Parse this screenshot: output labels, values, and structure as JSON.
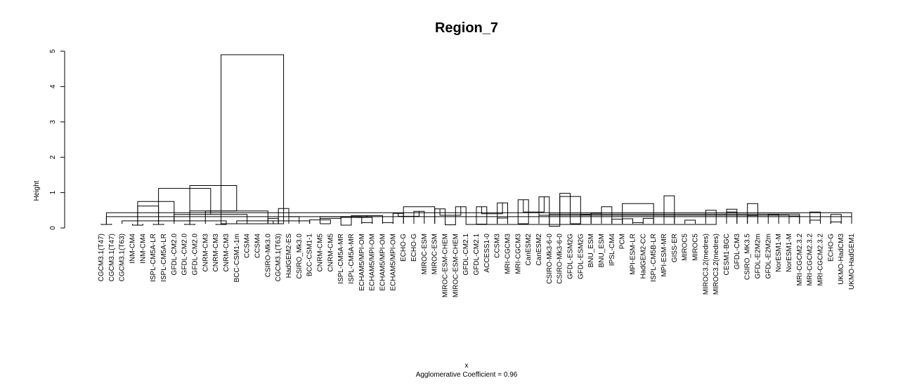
{
  "chart_data": {
    "type": "dendrogram",
    "title": "Region_7",
    "ylabel": "Height",
    "xlabel": "x",
    "subtitle": "Agglomerative Coefficient =  0.96",
    "ylim": [
      0,
      5
    ],
    "yticks": [
      0,
      1,
      2,
      3,
      4,
      5
    ],
    "leaves": [
      "CGCM3.1(T47)",
      "CGCM3.1(T47)",
      "CGCM3.1(T63)",
      "INM-CM4",
      "INM-CM4",
      "ISPL-CM5A-LR",
      "ISPL-CM5A-LR",
      "GFDL-CM2.0",
      "GFDL-CM2.0",
      "GFDL-CM2.0",
      "CNRM-CM3",
      "CNRM-CM3",
      "CNRM-CM3",
      "BCC-CSM1-1m",
      "CCSM4",
      "CCSM4",
      "CSIRO-Mk3.0",
      "CGCM3.1(T63)",
      "HadGEM2-ES",
      "CSIRO_Mk3.0",
      "BCC-CSM1-1",
      "CNRM-CM5",
      "CNRM-CM5",
      "ISPL-CM5A-MR",
      "ISPL-CM5A-MR",
      "ECHAM5/MPI-OM",
      "ECHAM5/MPI-OM",
      "ECHAM5/MPI-OM",
      "ECHAM5/MPI-OM",
      "ECHO-G",
      "ECHO-G",
      "MIROC-ESM",
      "MIROC-ESM",
      "MIROC-ESM-CHEM",
      "MIROC-ESM-CHEM",
      "GFDL-CM2.1",
      "GFDL-CM2.1",
      "ACCESS1-0",
      "CCSM3",
      "MRI-CGCM3",
      "MRI-CGCM3",
      "CanESM2",
      "CanESM2",
      "CSIRO-Mk3-6-0",
      "CSIRO-Mk3-6-0",
      "GFDL-ESM2G",
      "GFDL-ESM2G",
      "BNU_ESM",
      "BNU_ESM",
      "IPSL-CM4",
      "PCM",
      "MPI-ESM-LR",
      "HadGEM2-CC",
      "ISPL-CM5B-LR",
      "MPI-ESM-MR",
      "GISS-ER",
      "MIROC5",
      "MIROC5",
      "MIROC3.2(medres)",
      "MIROC3.2(medres)",
      "CESM1-BGC",
      "GFDL-CM3",
      "CSIRO_MK3.5",
      "GFDL-E2M2m",
      "GFDL-E2M2m",
      "NorESM1-M",
      "NorESM1-M",
      "MRI-CGCM2.3.2",
      "MRI-CGCM2.3.2",
      "MRI-CGCM2.3.2",
      "ECHO-G",
      "UKMO-HadCM3",
      "UKMO-HadGEM1"
    ],
    "merges": [
      [
        0,
        1,
        0.1
      ],
      [
        12,
        2,
        0.2
      ],
      [
        3,
        4,
        0.08
      ],
      [
        5,
        6,
        0.1
      ],
      [
        14,
        7,
        0.38
      ],
      [
        8,
        9,
        0.1
      ],
      [
        16,
        10,
        0.48
      ],
      [
        17,
        18,
        0.55
      ],
      [
        11,
        12,
        0.1
      ],
      [
        20,
        13,
        0.2
      ],
      [
        14,
        15,
        0.12
      ],
      [
        16,
        17,
        0.27
      ],
      [
        18,
        19,
        0.32
      ],
      [
        20,
        22,
        0.23
      ],
      [
        25,
        21,
        0.32
      ],
      [
        26,
        23,
        0.3
      ],
      [
        24,
        27,
        0.35
      ],
      [
        28,
        29,
        0.41
      ],
      [
        30,
        31,
        0.47
      ],
      [
        32,
        33,
        0.54
      ],
      [
        34,
        35,
        0.6
      ],
      [
        36,
        37,
        0.6
      ],
      [
        38,
        39,
        0.71
      ],
      [
        40,
        41,
        0.8
      ],
      [
        42,
        43,
        0.88
      ],
      [
        44,
        45,
        0.98
      ],
      [
        21,
        22,
        0.12
      ],
      [
        23,
        24,
        0.08
      ],
      [
        47,
        46,
        0.38
      ],
      [
        48,
        49,
        0.6
      ],
      [
        25,
        26,
        0.15
      ],
      [
        27,
        28,
        0.15
      ],
      [
        52,
        51,
        0.15
      ],
      [
        29,
        32,
        0.6
      ],
      [
        50,
        53,
        0.69
      ],
      [
        54,
        55,
        0.91
      ],
      [
        33,
        34,
        0.09
      ],
      [
        59,
        35,
        0.1
      ],
      [
        60,
        61,
        0.53
      ],
      [
        62,
        63,
        0.69
      ],
      [
        44,
        46,
        0.89
      ],
      [
        36,
        37,
        0.11
      ],
      [
        38,
        39,
        0.28
      ],
      [
        42,
        66,
        0.36
      ],
      [
        67,
        43,
        0.39
      ],
      [
        68,
        69,
        0.45
      ],
      [
        40,
        41,
        0.12
      ],
      [
        70,
        71,
        0.38
      ],
      [
        72,
        73,
        0.43
      ],
      [
        43,
        44,
        0.05
      ],
      [
        76,
        75,
        0.62
      ],
      [
        45,
        46,
        0.12
      ],
      [
        47,
        48,
        0.42
      ],
      [
        78,
        79,
        0.48
      ],
      [
        80,
        81,
        0.12
      ],
      [
        82,
        83,
        0.12
      ],
      [
        49,
        50,
        0.25
      ],
      [
        50,
        51,
        0.26
      ],
      [
        86,
        87,
        0.27
      ],
      [
        88,
        89,
        0.3
      ],
      [
        90,
        91,
        0.33
      ],
      [
        92,
        93,
        0.36
      ],
      [
        94,
        95,
        0.4
      ],
      [
        96,
        97,
        0.45
      ],
      [
        52,
        53,
        0.27
      ],
      [
        54,
        55,
        0.32
      ],
      [
        56,
        57,
        0.22
      ],
      [
        58,
        59,
        0.5
      ],
      [
        60,
        61,
        0.45
      ],
      [
        62,
        63,
        0.35
      ],
      [
        64,
        65,
        0.38
      ],
      [
        66,
        67,
        0.34
      ],
      [
        68,
        69,
        0.22
      ],
      [
        70,
        71,
        0.17
      ],
      [
        72,
        73,
        0.32
      ],
      [
        74,
        75,
        0.75
      ],
      [
        76,
        77,
        1.12
      ],
      [
        78,
        79,
        1.2
      ],
      [
        80,
        81,
        4.9
      ]
    ]
  }
}
